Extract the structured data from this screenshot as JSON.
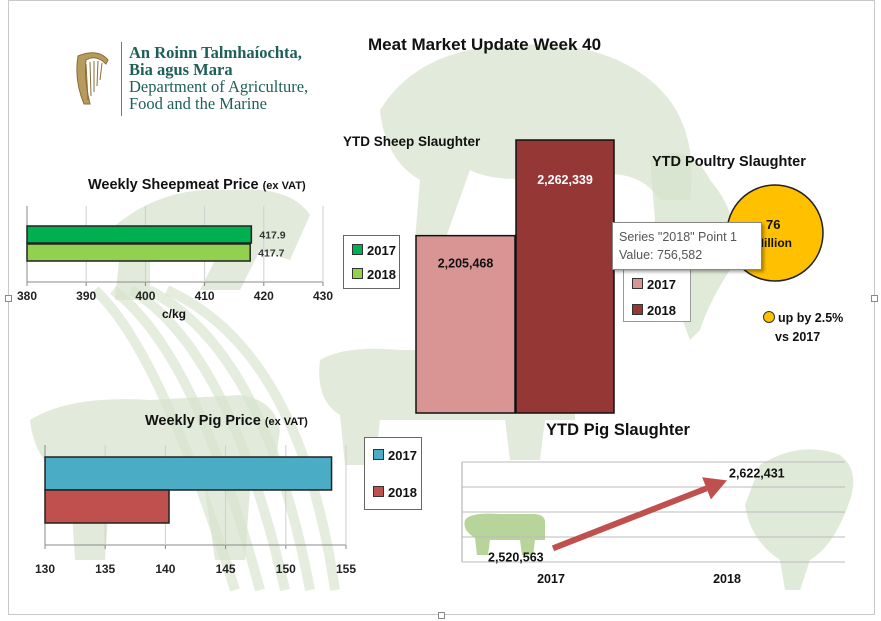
{
  "page_title": "Meat Market Update Week 40",
  "logo": {
    "line1": "An Roinn Talmhaíochta,",
    "line2": "Bia agus Mara",
    "line3": "Department of Agriculture,",
    "line4": "Food and the Marine",
    "harp_icon": "harp-icon"
  },
  "colors": {
    "sheep_2017": "#00b050",
    "sheep_2018": "#92d050",
    "pig_2017": "#4bacc6",
    "pig_2018": "#c0504d",
    "slaughter_2017": "#d99594",
    "slaughter_2018": "#953735",
    "poultry": "#ffc000",
    "arrow": "#c0504d",
    "silhouette": "#d5e3cc"
  },
  "tooltip": {
    "line1": "Series \"2018\" Point 1",
    "line2": "Value: 756,582"
  },
  "chart_data": [
    {
      "type": "bar",
      "orientation": "horizontal",
      "title": "Weekly Sheepmeat Price",
      "title_suffix": "(ex VAT)",
      "xlabel": "c/kg",
      "xlim": [
        380,
        430
      ],
      "xticks": [
        "380",
        "390",
        "400",
        "410",
        "420",
        "430"
      ],
      "series": [
        {
          "name": "2017",
          "values": [
            417.9
          ],
          "label": "417.9"
        },
        {
          "name": "2018",
          "values": [
            417.7
          ],
          "label": "417.7"
        }
      ],
      "legend": [
        "2017",
        "2018"
      ],
      "grid": true
    },
    {
      "type": "bar",
      "orientation": "horizontal",
      "title": "Weekly Pig Price",
      "title_suffix": "(ex VAT)",
      "xlim": [
        130,
        155
      ],
      "xticks": [
        "130",
        "135",
        "140",
        "145",
        "150",
        "155"
      ],
      "series": [
        {
          "name": "2017",
          "values": [
            153.8
          ]
        },
        {
          "name": "2018",
          "values": [
            140.3
          ]
        }
      ],
      "legend": [
        "2017",
        "2018"
      ],
      "grid": true
    },
    {
      "type": "bar",
      "title": "YTD Sheep Slaughter",
      "series": [
        {
          "name": "2017",
          "values": [
            2205468
          ],
          "label": "2,205,468"
        },
        {
          "name": "2018",
          "values": [
            2262339
          ],
          "label": "2,262,339"
        }
      ],
      "legend": [
        "2017",
        "2018"
      ]
    },
    {
      "type": "pie",
      "title": "YTD Poultry Slaughter",
      "center_value": "76",
      "center_unit": "Million",
      "annotation_line1": "up by 2.5%",
      "annotation_line2": "vs 2017"
    },
    {
      "type": "line",
      "title": "YTD Pig Slaughter",
      "categories": [
        "2017",
        "2018"
      ],
      "values": [
        2520563,
        2622431
      ],
      "labels": [
        "2,520,563",
        "2,622,431"
      ],
      "grid": true
    }
  ]
}
